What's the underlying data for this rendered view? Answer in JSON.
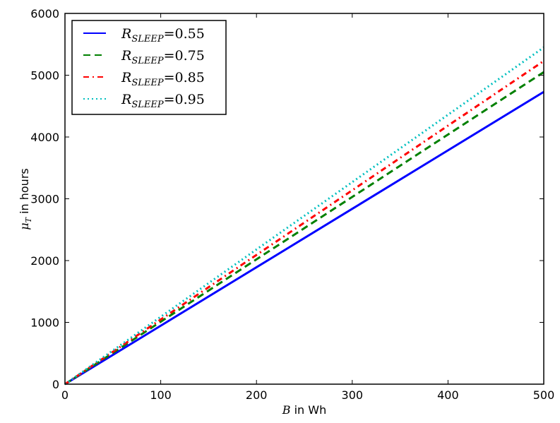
{
  "chart_data": {
    "type": "line",
    "title": "",
    "xlabel": "B in Wh",
    "xlabel_math": "B",
    "xlabel_rest": " in Wh",
    "ylabel": "μ_T in hours",
    "ylabel_math": "μ",
    "ylabel_sub": "T",
    "ylabel_rest": " in hours",
    "xlim": [
      0,
      500
    ],
    "ylim": [
      0,
      6000
    ],
    "xticks": [
      0,
      100,
      200,
      300,
      400,
      500
    ],
    "yticks": [
      0,
      1000,
      2000,
      3000,
      4000,
      5000,
      6000
    ],
    "grid": false,
    "legend_position": "upper left",
    "x": [
      0,
      100,
      200,
      300,
      400,
      500
    ],
    "series": [
      {
        "name": "R_SLEEP = 0.55",
        "label_base": "R",
        "label_sub": "SLEEP",
        "label_val": "=0.55",
        "color": "#0000ff",
        "style": "solid",
        "values": [
          0,
          946,
          1892,
          2838,
          3784,
          4730
        ]
      },
      {
        "name": "R_SLEEP = 0.75",
        "label_base": "R",
        "label_sub": "SLEEP",
        "label_val": "=0.75",
        "color": "#008000",
        "style": "dashed",
        "values": [
          0,
          1010,
          2020,
          3030,
          4040,
          5050
        ]
      },
      {
        "name": "R_SLEEP = 0.85",
        "label_base": "R",
        "label_sub": "SLEEP",
        "label_val": "=0.85",
        "color": "#ff0000",
        "style": "dashdot",
        "values": [
          0,
          1046,
          2092,
          3138,
          4184,
          5230
        ]
      },
      {
        "name": "R_SLEEP = 0.95",
        "label_base": "R",
        "label_sub": "SLEEP",
        "label_val": "=0.95",
        "color": "#00bfbf",
        "style": "dotted",
        "values": [
          0,
          1090,
          2180,
          3270,
          4360,
          5450
        ]
      }
    ]
  }
}
